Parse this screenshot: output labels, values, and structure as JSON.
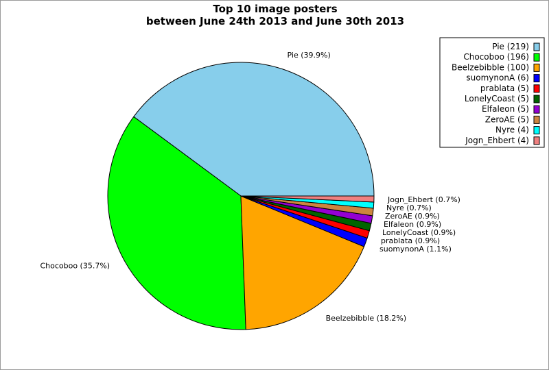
{
  "chart_data": {
    "type": "pie",
    "title": "Top 10 image posters",
    "subtitle": "between June 24th 2013 and June 30th 2013",
    "legend_placement": "top-right",
    "slices": [
      {
        "name": "Pie",
        "value": 219,
        "legend_label": "Pie (219)",
        "slice_label": "Pie (39.9%)",
        "color": "#87ceeb"
      },
      {
        "name": "Chocoboo",
        "value": 196,
        "legend_label": "Chocoboo (196)",
        "slice_label": "Chocoboo (35.7%)",
        "color": "#00ff00"
      },
      {
        "name": "Beelzebibble",
        "value": 100,
        "legend_label": "Beelzebibble (100)",
        "slice_label": "Beelzebibble (18.2%)",
        "color": "#ffa500"
      },
      {
        "name": "suomynonA",
        "value": 6,
        "legend_label": "suomynonA (6)",
        "slice_label": "suomynonA (1.1%)",
        "color": "#0000ff"
      },
      {
        "name": "prablata",
        "value": 5,
        "legend_label": "prablata (5)",
        "slice_label": "prablata (0.9%)",
        "color": "#ff0000"
      },
      {
        "name": "LonelyCoast",
        "value": 5,
        "legend_label": "LonelyCoast (5)",
        "slice_label": "LonelyCoast (0.9%)",
        "color": "#006400"
      },
      {
        "name": "Elfaleon",
        "value": 5,
        "legend_label": "Elfaleon (5)",
        "slice_label": "Elfaleon (0.9%)",
        "color": "#9400d3"
      },
      {
        "name": "ZeroAE",
        "value": 5,
        "legend_label": "ZeroAE (5)",
        "slice_label": "ZeroAE (0.9%)",
        "color": "#cd853f"
      },
      {
        "name": "Nyre",
        "value": 4,
        "legend_label": "Nyre (4)",
        "slice_label": "Nyre (0.7%)",
        "color": "#00ffff"
      },
      {
        "name": "Jogn_Ehbert",
        "value": 4,
        "legend_label": "Jogn_Ehbert (4)",
        "slice_label": "Jogn_Ehbert (0.7%)",
        "color": "#f08080"
      }
    ]
  }
}
